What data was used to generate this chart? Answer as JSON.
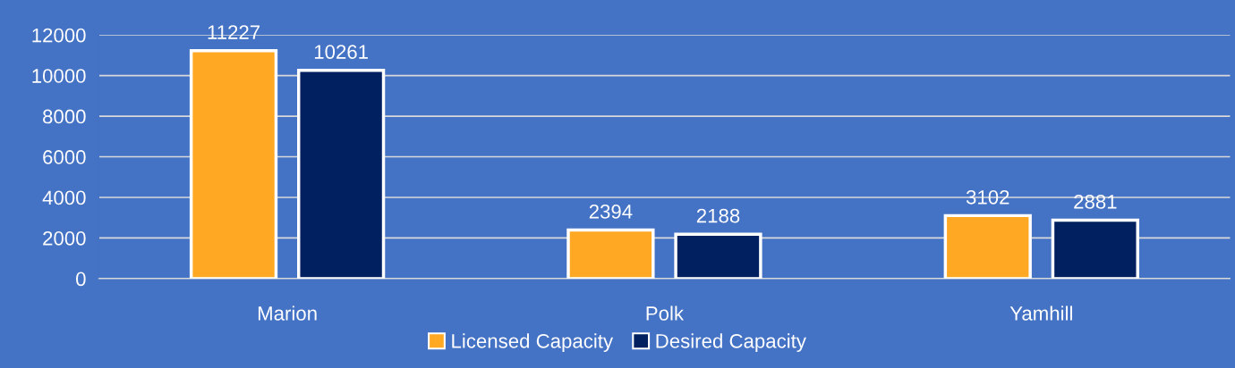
{
  "chart_data": {
    "type": "bar",
    "categories": [
      "Marion",
      "Polk",
      "Yamhill"
    ],
    "series": [
      {
        "name": "Licensed Capacity",
        "color": "#ffa823",
        "values": [
          11227,
          2394,
          3102
        ]
      },
      {
        "name": "Desired Capacity",
        "color": "#002060",
        "values": [
          10261,
          2188,
          2881
        ]
      }
    ],
    "ylim": [
      0,
      12000
    ],
    "yticks": [
      0,
      2000,
      4000,
      6000,
      8000,
      10000,
      12000
    ],
    "grid": "y",
    "legend": "bottom",
    "data_labels": true
  }
}
